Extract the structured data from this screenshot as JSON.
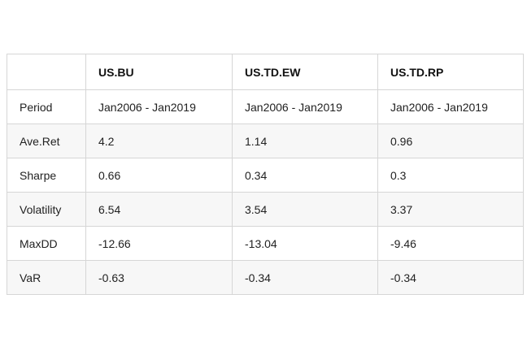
{
  "table": {
    "columns": [
      "",
      "US.BU",
      "US.TD.EW",
      "US.TD.RP"
    ],
    "rows": [
      {
        "label": "Period",
        "cells": [
          "Jan2006 - Jan2019",
          "Jan2006 - Jan2019",
          "Jan2006 - Jan2019"
        ]
      },
      {
        "label": "Ave.Ret",
        "cells": [
          "4.2",
          "1.14",
          "0.96"
        ]
      },
      {
        "label": "Sharpe",
        "cells": [
          "0.66",
          "0.34",
          "0.3"
        ]
      },
      {
        "label": "Volatility",
        "cells": [
          "6.54",
          "3.54",
          "3.37"
        ]
      },
      {
        "label": "MaxDD",
        "cells": [
          "-12.66",
          "-13.04",
          "-9.46"
        ]
      },
      {
        "label": "VaR",
        "cells": [
          "-0.63",
          "-0.34",
          "-0.34"
        ]
      }
    ]
  }
}
